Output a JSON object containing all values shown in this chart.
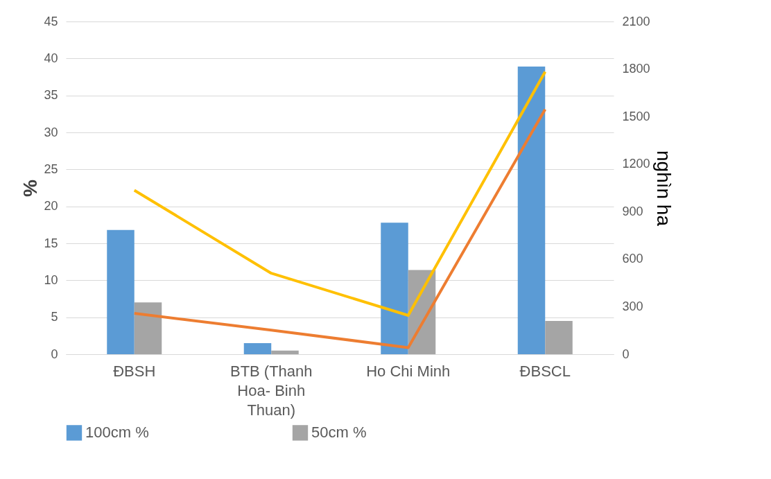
{
  "chart_data": {
    "type": "bar",
    "ylabel": "%",
    "y2label": "nghìn ha",
    "categories": [
      "ĐBSH",
      "BTB (Thanh Hoa- Binh Thuan)",
      "Ho Chi Minh",
      "ĐBSCL"
    ],
    "series": [
      {
        "name": "100cm  %",
        "color": "#5b9bd5",
        "values": [
          16.8,
          1.5,
          17.8,
          38.9
        ]
      },
      {
        "name": "50cm %",
        "color": "#a5a5a5",
        "values": [
          7.0,
          0.5,
          11.4,
          4.5
        ]
      },
      {
        "type": "line",
        "axis": "y2",
        "color": "#ffc000",
        "values": [
          1035,
          511,
          245,
          1783
        ]
      },
      {
        "type": "line",
        "axis": "y2",
        "color": "#ed7d31",
        "values": [
          258,
          152,
          42,
          1546
        ]
      }
    ],
    "ylim": [
      0,
      45
    ],
    "yticks": [
      0,
      5,
      10,
      15,
      20,
      25,
      30,
      35,
      40,
      45
    ],
    "y2lim": [
      0,
      2100
    ],
    "y2ticks": [
      0,
      300,
      600,
      900,
      1200,
      1500,
      1800,
      2100
    ],
    "grid": "y",
    "legend": "bottom"
  }
}
